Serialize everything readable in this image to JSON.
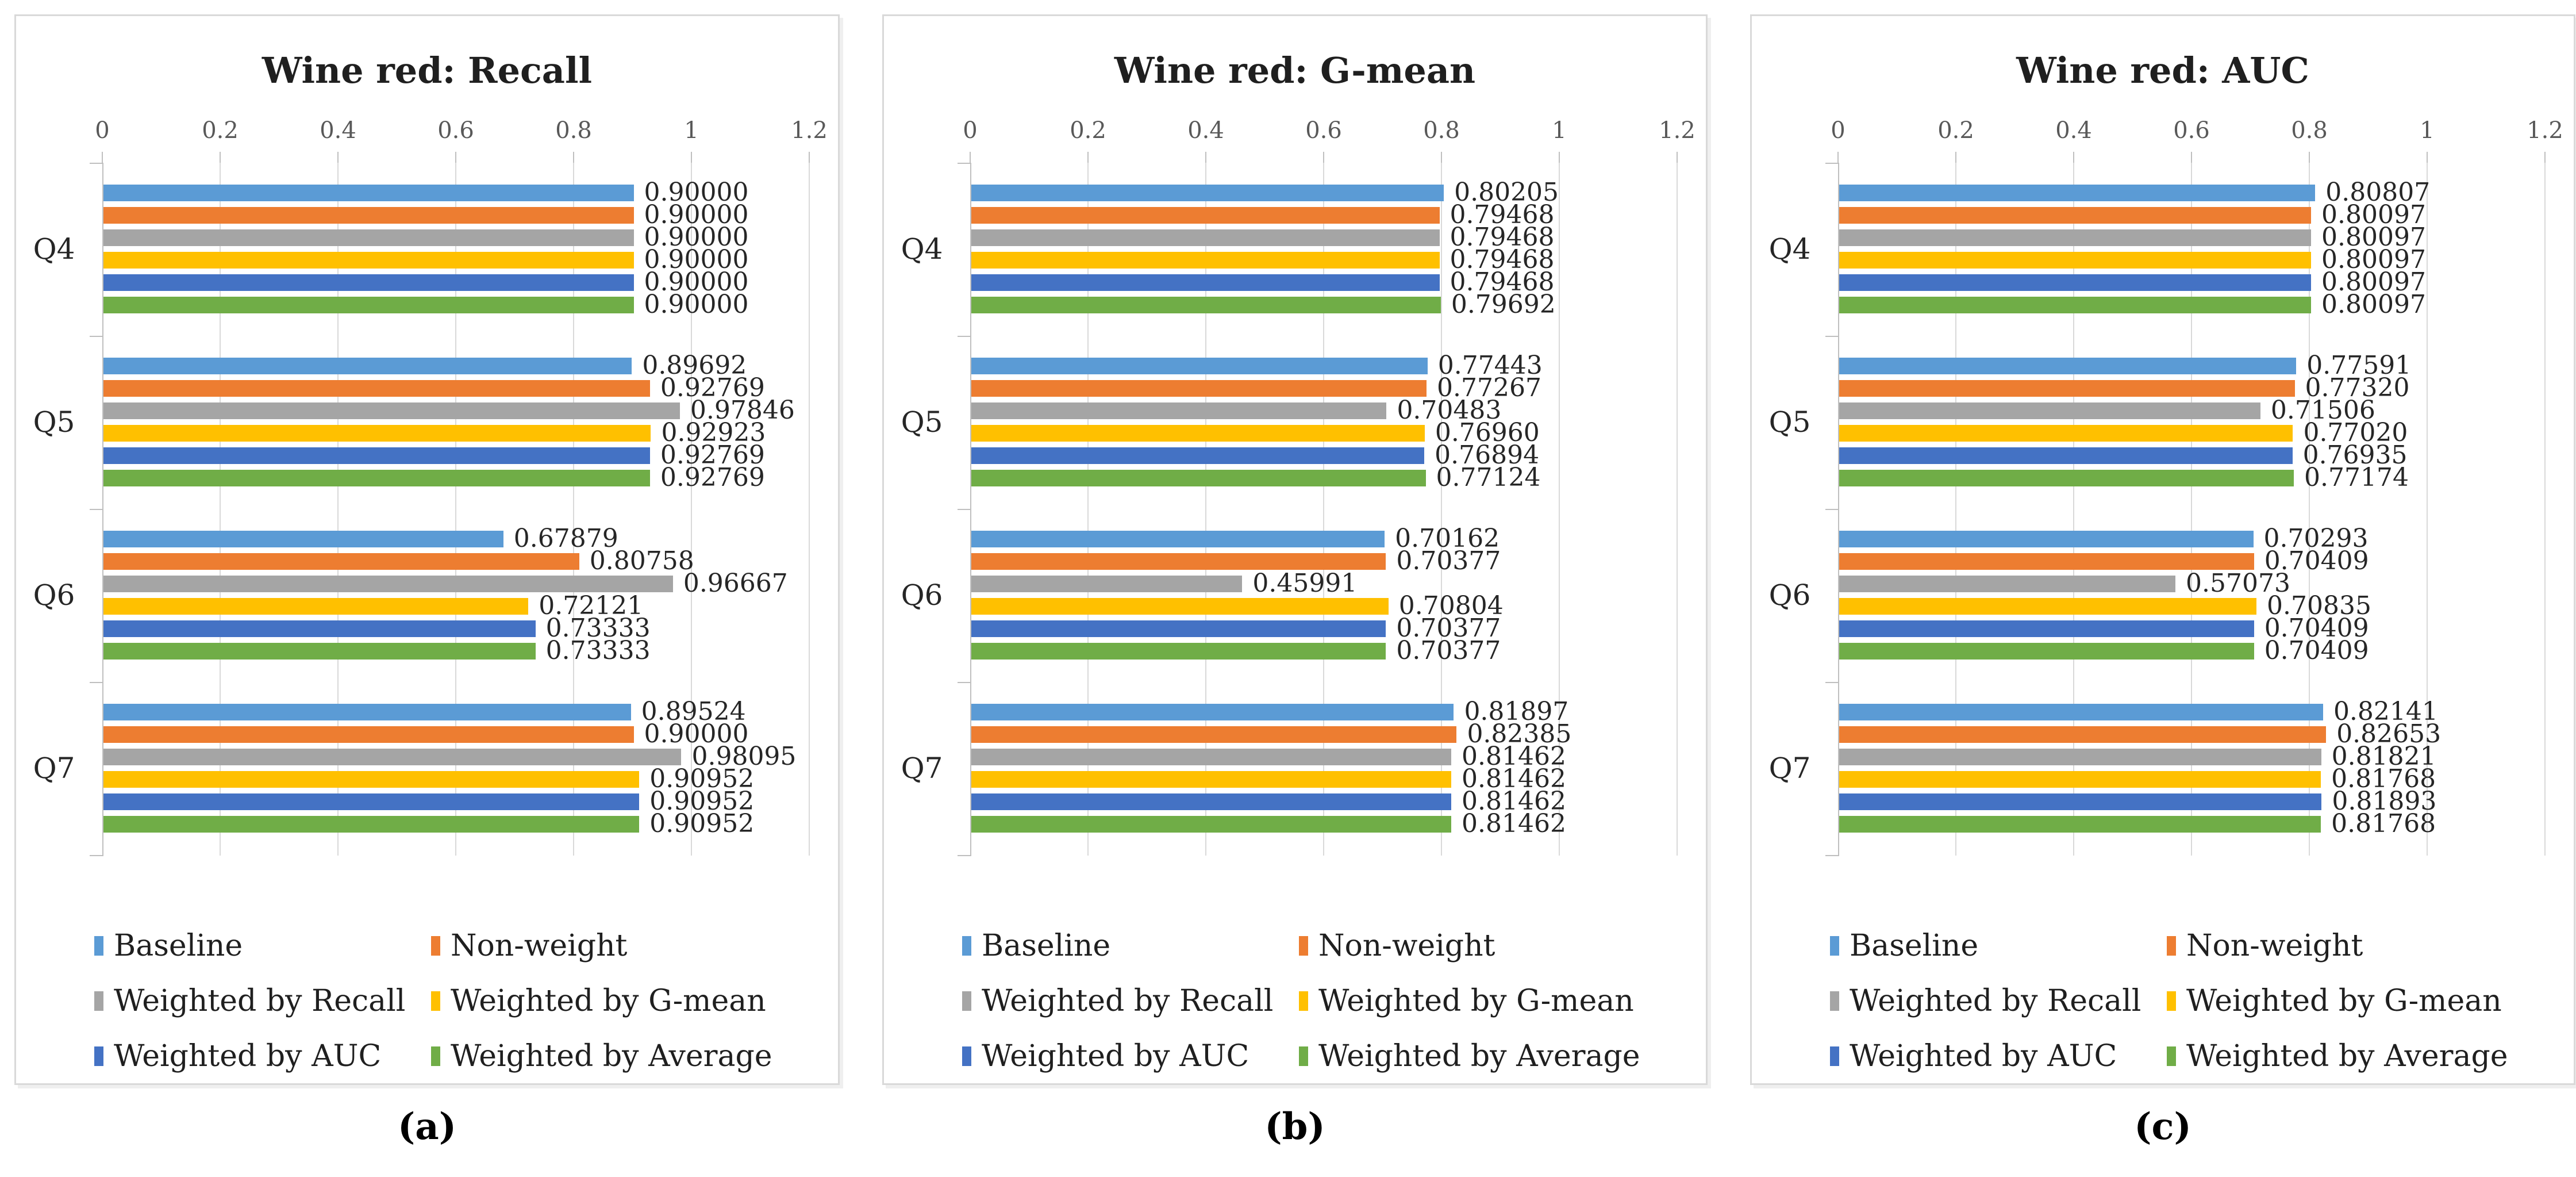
{
  "figure": {
    "style_colors": {
      "panel_border": "#D9D9D9",
      "gridline": "#D9D9D9",
      "axis_line": "#BFBFBF",
      "tick_text": "#595959",
      "label_text": "#262626",
      "title_text": "#1F1F1F"
    }
  },
  "chart_data": [
    {
      "type": "bar",
      "orientation": "horizontal",
      "title": "Wine red: Recall",
      "panel_label": "(a)",
      "xlim": [
        0,
        1.2
      ],
      "xticks": [
        "0",
        "0.2",
        "0.4",
        "0.6",
        "0.8",
        "1",
        "1.2"
      ],
      "grid": true,
      "legend_position": "bottom",
      "categories": [
        "Q4",
        "Q5",
        "Q6",
        "Q7"
      ],
      "series": [
        {
          "name": "Baseline",
          "color": "#5B9BD5",
          "values": [
            "0.90000",
            "0.89692",
            "0.67879",
            "0.89524"
          ]
        },
        {
          "name": "Non-weight",
          "color": "#ED7D31",
          "values": [
            "0.90000",
            "0.92769",
            "0.80758",
            "0.90000"
          ]
        },
        {
          "name": "Weighted by Recall",
          "color": "#A5A5A5",
          "values": [
            "0.90000",
            "0.97846",
            "0.96667",
            "0.98095"
          ]
        },
        {
          "name": "Weighted by G-mean",
          "color": "#FFC000",
          "values": [
            "0.90000",
            "0.92923",
            "0.72121",
            "0.90952"
          ]
        },
        {
          "name": "Weighted by AUC",
          "color": "#4472C4",
          "values": [
            "0.90000",
            "0.92769",
            "0.73333",
            "0.90952"
          ]
        },
        {
          "name": "Weighted by Average",
          "color": "#70AD47",
          "values": [
            "0.90000",
            "0.92769",
            "0.73333",
            "0.90952"
          ]
        }
      ]
    },
    {
      "type": "bar",
      "orientation": "horizontal",
      "title": "Wine red: G-mean",
      "panel_label": "(b)",
      "xlim": [
        0,
        1.2
      ],
      "xticks": [
        "0",
        "0.2",
        "0.4",
        "0.6",
        "0.8",
        "1",
        "1.2"
      ],
      "grid": true,
      "legend_position": "bottom",
      "categories": [
        "Q4",
        "Q5",
        "Q6",
        "Q7"
      ],
      "series": [
        {
          "name": "Baseline",
          "color": "#5B9BD5",
          "values": [
            "0.80205",
            "0.77443",
            "0.70162",
            "0.81897"
          ]
        },
        {
          "name": "Non-weight",
          "color": "#ED7D31",
          "values": [
            "0.79468",
            "0.77267",
            "0.70377",
            "0.82385"
          ]
        },
        {
          "name": "Weighted by Recall",
          "color": "#A5A5A5",
          "values": [
            "0.79468",
            "0.70483",
            "0.45991",
            "0.81462"
          ]
        },
        {
          "name": "Weighted by G-mean",
          "color": "#FFC000",
          "values": [
            "0.79468",
            "0.76960",
            "0.70804",
            "0.81462"
          ]
        },
        {
          "name": "Weighted by AUC",
          "color": "#4472C4",
          "values": [
            "0.79468",
            "0.76894",
            "0.70377",
            "0.81462"
          ]
        },
        {
          "name": "Weighted by Average",
          "color": "#70AD47",
          "values": [
            "0.79692",
            "0.77124",
            "0.70377",
            "0.81462"
          ]
        }
      ]
    },
    {
      "type": "bar",
      "orientation": "horizontal",
      "title": "Wine red: AUC",
      "panel_label": "(c)",
      "xlim": [
        0,
        1.2
      ],
      "xticks": [
        "0",
        "0.2",
        "0.4",
        "0.6",
        "0.8",
        "1",
        "1.2"
      ],
      "grid": true,
      "legend_position": "bottom",
      "categories": [
        "Q4",
        "Q5",
        "Q6",
        "Q7"
      ],
      "series": [
        {
          "name": "Baseline",
          "color": "#5B9BD5",
          "values": [
            "0.80807",
            "0.77591",
            "0.70293",
            "0.82141"
          ]
        },
        {
          "name": "Non-weight",
          "color": "#ED7D31",
          "values": [
            "0.80097",
            "0.77320",
            "0.70409",
            "0.82653"
          ]
        },
        {
          "name": "Weighted by Recall",
          "color": "#A5A5A5",
          "values": [
            "0.80097",
            "0.71506",
            "0.57073",
            "0.81821"
          ]
        },
        {
          "name": "Weighted by G-mean",
          "color": "#FFC000",
          "values": [
            "0.80097",
            "0.77020",
            "0.70835",
            "0.81768"
          ]
        },
        {
          "name": "Weighted by AUC",
          "color": "#4472C4",
          "values": [
            "0.80097",
            "0.76935",
            "0.70409",
            "0.81893"
          ]
        },
        {
          "name": "Weighted by Average",
          "color": "#70AD47",
          "values": [
            "0.80097",
            "0.77174",
            "0.70409",
            "0.81768"
          ]
        }
      ]
    }
  ]
}
